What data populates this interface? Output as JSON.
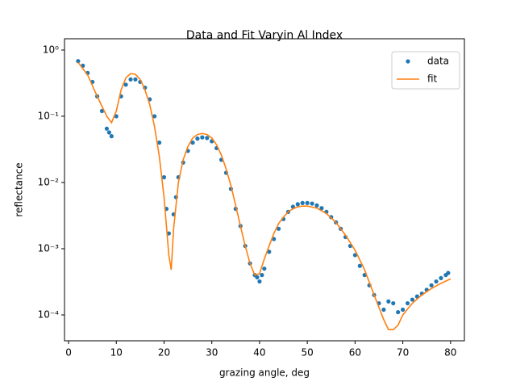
{
  "chart_data": {
    "type": "scatter-line",
    "title": "Data and Fit Varyin Al Index",
    "xlabel": "grazing angle, deg",
    "ylabel": "reflectance",
    "xlim": [
      -0.85,
      82.9
    ],
    "ylim": [
      4.07e-05,
      1.48
    ],
    "ylog": true,
    "xticks": [
      0,
      10,
      20,
      30,
      40,
      50,
      60,
      70,
      80
    ],
    "yticks": [
      {
        "value": 0.0001,
        "label": "10⁻⁴"
      },
      {
        "value": 0.001,
        "label": "10⁻³"
      },
      {
        "value": 0.01,
        "label": "10⁻²"
      },
      {
        "value": 0.1,
        "label": "10⁻¹"
      },
      {
        "value": 1,
        "label": "10⁰"
      }
    ],
    "legend": "upper right",
    "series": [
      {
        "name": "data",
        "style": "markers",
        "color": "#1f77b4",
        "x": [
          2,
          3,
          4,
          5,
          6,
          7,
          8,
          8.5,
          9,
          10,
          11,
          12,
          13,
          14,
          15,
          16,
          17,
          18,
          19,
          20,
          20.5,
          21,
          22,
          22.5,
          23,
          24,
          25,
          26,
          27,
          28,
          29,
          30,
          31,
          32,
          33,
          34,
          35,
          36,
          37,
          38,
          39,
          39.5,
          40,
          40.5,
          41,
          42,
          43,
          44,
          45,
          46,
          47,
          48,
          49,
          50,
          51,
          52,
          53,
          54,
          55,
          56,
          57,
          58,
          59,
          60,
          61,
          62,
          63,
          64,
          65,
          66,
          67,
          68,
          69,
          70,
          71,
          72,
          73,
          74,
          75,
          76,
          77,
          78,
          79,
          79.5
        ],
        "values": [
          0.68,
          0.58,
          0.45,
          0.33,
          0.2,
          0.12,
          0.065,
          0.057,
          0.05,
          0.1,
          0.2,
          0.3,
          0.36,
          0.36,
          0.33,
          0.27,
          0.18,
          0.1,
          0.04,
          0.012,
          0.004,
          0.0017,
          0.0033,
          0.006,
          0.012,
          0.02,
          0.03,
          0.04,
          0.046,
          0.048,
          0.047,
          0.042,
          0.033,
          0.022,
          0.014,
          0.008,
          0.004,
          0.0022,
          0.0011,
          0.0006,
          0.0004,
          0.00037,
          0.00032,
          0.0004,
          0.0005,
          0.0009,
          0.0014,
          0.002,
          0.0028,
          0.0036,
          0.0043,
          0.0047,
          0.0049,
          0.0049,
          0.0048,
          0.0045,
          0.0041,
          0.0036,
          0.003,
          0.0025,
          0.002,
          0.0015,
          0.0011,
          0.0008,
          0.00055,
          0.0004,
          0.00028,
          0.0002,
          0.00015,
          0.00012,
          0.00016,
          0.00015,
          0.00011,
          0.00012,
          0.00015,
          0.00017,
          0.00019,
          0.00021,
          0.00024,
          0.00028,
          0.00032,
          0.00036,
          0.0004,
          0.00043
        ]
      },
      {
        "name": "fit",
        "style": "line",
        "color": "#ff7f0e",
        "x": [
          2,
          4,
          6,
          8,
          9,
          10,
          11,
          12,
          13,
          14,
          15,
          16,
          17,
          18,
          19,
          20,
          21,
          21.5,
          22,
          23,
          24,
          25,
          26,
          27,
          28,
          29,
          30,
          31,
          32,
          33,
          34,
          35,
          36,
          37,
          38,
          39,
          40,
          41,
          42,
          43,
          44,
          45,
          46,
          47,
          48,
          49,
          50,
          52,
          54,
          56,
          58,
          60,
          62,
          64,
          66,
          67,
          68,
          69,
          70,
          72,
          74,
          76,
          78,
          80
        ],
        "values": [
          0.65,
          0.42,
          0.2,
          0.1,
          0.08,
          0.12,
          0.25,
          0.38,
          0.44,
          0.43,
          0.36,
          0.25,
          0.15,
          0.07,
          0.025,
          0.006,
          0.0008,
          0.00048,
          0.002,
          0.01,
          0.022,
          0.035,
          0.047,
          0.053,
          0.055,
          0.053,
          0.047,
          0.037,
          0.026,
          0.016,
          0.009,
          0.0045,
          0.0022,
          0.0011,
          0.0006,
          0.0004,
          0.00042,
          0.0007,
          0.0011,
          0.0017,
          0.0024,
          0.003,
          0.0036,
          0.004,
          0.0043,
          0.0044,
          0.0044,
          0.0041,
          0.0034,
          0.0025,
          0.0016,
          0.00095,
          0.00048,
          0.0002,
          8.5e-05,
          6e-05,
          6e-05,
          7e-05,
          0.0001,
          0.00015,
          0.0002,
          0.00025,
          0.0003,
          0.00035
        ]
      }
    ]
  }
}
